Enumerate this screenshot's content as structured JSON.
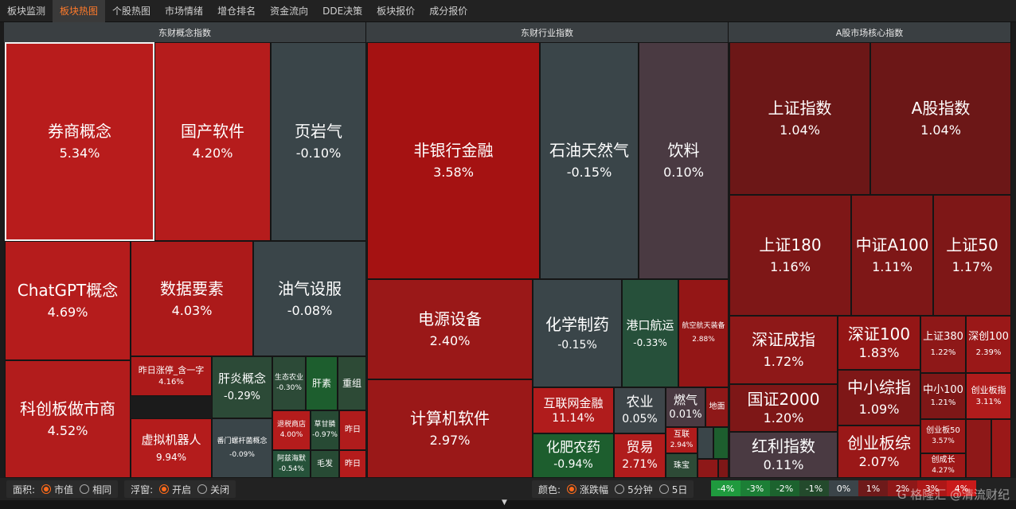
{
  "tabs": [
    {
      "label": "板块监测"
    },
    {
      "label": "板块热图"
    },
    {
      "label": "个股热图"
    },
    {
      "label": "市场情绪"
    },
    {
      "label": "增仓排名"
    },
    {
      "label": "资金流向"
    },
    {
      "label": "DDE决策"
    },
    {
      "label": "板块报价"
    },
    {
      "label": "成分报价"
    }
  ],
  "sections": {
    "concept": "东财概念指数",
    "industry": "东财行业指数",
    "core": "A股市场核心指数"
  },
  "concept_cells": [
    {
      "name": "券商概念",
      "value": "5.34%"
    },
    {
      "name": "国产软件",
      "value": "4.20%"
    },
    {
      "name": "页岩气",
      "value": "-0.10%"
    },
    {
      "name": "ChatGPT概念",
      "value": "4.69%"
    },
    {
      "name": "数据要素",
      "value": "4.03%"
    },
    {
      "name": "油气设服",
      "value": "-0.08%"
    },
    {
      "name": "科创板做市商",
      "value": "4.52%"
    },
    {
      "name": "昨日涨停_含一字",
      "value": "4.16%"
    },
    {
      "name": "肝炎概念",
      "value": "-0.29%"
    },
    {
      "name": "虚拟机器人",
      "value": "9.94%"
    },
    {
      "name": "生态农业",
      "value": "-0.30%"
    },
    {
      "name": "肝素",
      "value": ""
    },
    {
      "name": "重组",
      "value": ""
    },
    {
      "name": "退税商店",
      "value": "4.00%"
    },
    {
      "name": "草甘膦",
      "value": "-0.97%"
    },
    {
      "name": "昨日",
      "value": ""
    },
    {
      "name": "番门螺杆菌概念",
      "value": "-0.09%"
    },
    {
      "name": "阿兹海默",
      "value": "-0.54%"
    },
    {
      "name": "毛发",
      "value": ""
    },
    {
      "name": "昨日",
      "value": ""
    }
  ],
  "industry_cells": [
    {
      "name": "非银行金融",
      "value": "3.58%"
    },
    {
      "name": "石油天然气",
      "value": "-0.15%"
    },
    {
      "name": "饮料",
      "value": "0.10%"
    },
    {
      "name": "电源设备",
      "value": "2.40%"
    },
    {
      "name": "化学制药",
      "value": "-0.15%"
    },
    {
      "name": "港口航运",
      "value": "-0.33%"
    },
    {
      "name": "航空航天装备",
      "value": "2.88%"
    },
    {
      "name": "计算机软件",
      "value": "2.97%"
    },
    {
      "name": "互联网金融",
      "value": "11.14%"
    },
    {
      "name": "农业",
      "value": "0.05%"
    },
    {
      "name": "燃气",
      "value": "0.01%"
    },
    {
      "name": "地面",
      "value": ""
    },
    {
      "name": "化肥农药",
      "value": "-0.94%"
    },
    {
      "name": "贸易",
      "value": "2.71%"
    },
    {
      "name": "互联",
      "value": "2.94%"
    },
    {
      "name": "珠宝",
      "value": ""
    }
  ],
  "core_cells": [
    {
      "name": "上证指数",
      "value": "1.04%"
    },
    {
      "name": "A股指数",
      "value": "1.04%"
    },
    {
      "name": "上证180",
      "value": "1.16%"
    },
    {
      "name": "中证A100",
      "value": "1.11%"
    },
    {
      "name": "上证50",
      "value": "1.17%"
    },
    {
      "name": "深证成指",
      "value": "1.72%"
    },
    {
      "name": "深证100",
      "value": "1.83%"
    },
    {
      "name": "上证380",
      "value": "1.22%"
    },
    {
      "name": "深创100",
      "value": "2.39%"
    },
    {
      "name": "国证2000",
      "value": "1.20%"
    },
    {
      "name": "中小综指",
      "value": "1.09%"
    },
    {
      "name": "中小100",
      "value": "1.21%"
    },
    {
      "name": "创业板指",
      "value": "3.11%"
    },
    {
      "name": "红利指数",
      "value": "0.11%"
    },
    {
      "name": "创业板综",
      "value": "2.07%"
    },
    {
      "name": "创业板50",
      "value": "3.57%"
    },
    {
      "name": "创成长",
      "value": "4.27%"
    }
  ],
  "footer": {
    "area_label": "面积:",
    "area_opt1": "市值",
    "area_opt2": "相同",
    "float_label": "浮窗:",
    "float_opt1": "开启",
    "float_opt2": "关闭",
    "color_label": "颜色:",
    "color_opt1": "涨跌幅",
    "color_opt2": "5分钟",
    "color_opt3": "5日"
  },
  "legend": [
    {
      "label": "-4%",
      "color": "#1f9a3e"
    },
    {
      "label": "-3%",
      "color": "#1c7f36"
    },
    {
      "label": "-2%",
      "color": "#1c632e"
    },
    {
      "label": "-1%",
      "color": "#234a2c"
    },
    {
      "label": "0%",
      "color": "#3b4449"
    },
    {
      "label": "1%",
      "color": "#6e1a1a"
    },
    {
      "label": "2%",
      "color": "#8e1818"
    },
    {
      "label": "3%",
      "color": "#ad1717"
    },
    {
      "label": "4%",
      "color": "#c91a1a"
    }
  ],
  "watermark": "G 格隆汇 @清流财纪"
}
